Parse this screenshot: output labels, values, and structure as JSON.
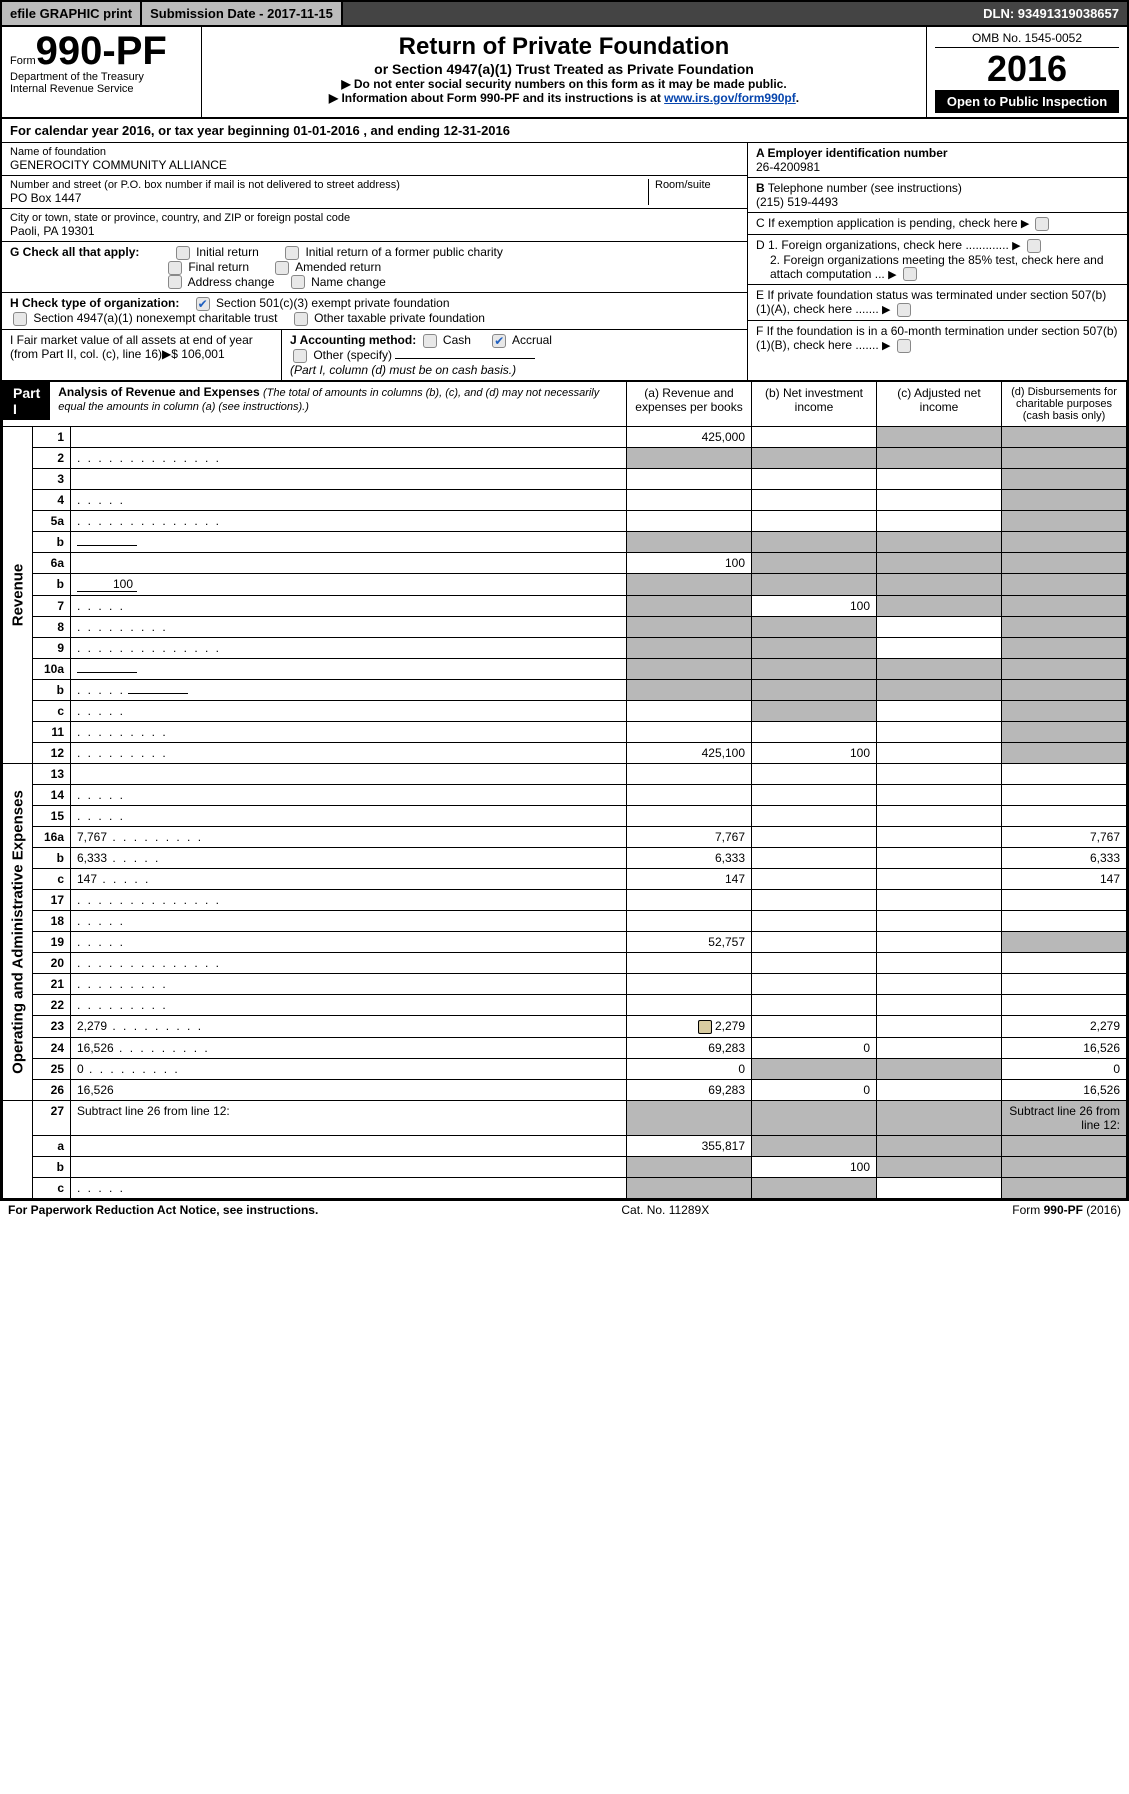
{
  "top_bar": {
    "efile": "efile GRAPHIC print",
    "submission": "Submission Date - 2017-11-15",
    "dln": "DLN: 93491319038657"
  },
  "header": {
    "form_word": "Form",
    "form_no": "990-PF",
    "dept1": "Department of the Treasury",
    "dept2": "Internal Revenue Service",
    "title": "Return of Private Foundation",
    "subtitle": "or Section 4947(a)(1) Trust Treated as Private Foundation",
    "note1": "▶ Do not enter social security numbers on this form as it may be made public.",
    "note2_pre": "▶ Information about Form 990-PF and its instructions is at ",
    "note2_link": "www.irs.gov/form990pf",
    "note2_post": ".",
    "omb": "OMB No. 1545-0052",
    "year": "2016",
    "open": "Open to Public Inspection"
  },
  "cal_year": "For calendar year 2016, or tax year beginning 01-01-2016                            , and ending 12-31-2016",
  "identity": {
    "name_label": "Name of foundation",
    "name": "GENEROCITY COMMUNITY ALLIANCE",
    "addr_label": "Number and street (or P.O. box number if mail is not delivered to street address)",
    "room_label": "Room/suite",
    "addr": "PO Box 1447",
    "city_label": "City or town, state or province, country, and ZIP or foreign postal code",
    "city": "Paoli, PA  19301",
    "ein_label": "A Employer identification number",
    "ein": "26-4200981",
    "tel_label": "B Telephone number (see instructions)",
    "tel": "(215) 519-4493",
    "c_label": "C If exemption application is pending, check here",
    "d1": "D 1. Foreign organizations, check here .............",
    "d2": "2. Foreign organizations meeting the 85% test, check here and attach computation ...",
    "e": "E  If private foundation status was terminated under section 507(b)(1)(A), check here .......",
    "f": "F  If the foundation is in a 60-month termination under section 507(b)(1)(B), check here .......",
    "g_label": "G Check all that apply:",
    "g_opts": [
      "Initial return",
      "Initial return of a former public charity",
      "Final return",
      "Amended return",
      "Address change",
      "Name change"
    ],
    "h_label": "H Check type of organization:",
    "h1": "Section 501(c)(3) exempt private foundation",
    "h2": "Section 4947(a)(1) nonexempt charitable trust",
    "h3": "Other taxable private foundation",
    "i_label": "I Fair market value of all assets at end of year (from Part II, col. (c), line 16)▶$  106,001",
    "j_label": "J Accounting method:",
    "j_cash": "Cash",
    "j_accrual": "Accrual",
    "j_other": "Other (specify)",
    "j_note": "(Part I, column (d) must be on cash basis.)"
  },
  "part1": {
    "badge": "Part I",
    "title": "Analysis of Revenue and Expenses",
    "title_note": "(The total of amounts in columns (b), (c), and (d) may not necessarily equal the amounts in column (a) (see instructions).)",
    "cols": {
      "a": "(a)    Revenue and expenses per books",
      "b": "(b)   Net investment income",
      "c": "(c)   Adjusted net income",
      "d": "(d)   Disbursements for charitable purposes (cash basis only)"
    },
    "section_rev": "Revenue",
    "section_exp": "Operating and Administrative Expenses"
  },
  "lines": [
    {
      "n": "1",
      "d": "",
      "a": "425,000",
      "b": "",
      "c": "",
      "c_sh": true,
      "d_sh": true
    },
    {
      "n": "2",
      "d": "",
      "dots": "long",
      "a": "",
      "b": "",
      "c": "",
      "all_sh": true
    },
    {
      "n": "3",
      "d": "",
      "a": "",
      "b": "",
      "c": "",
      "d_sh": true
    },
    {
      "n": "4",
      "d": "",
      "dots": "short",
      "a": "",
      "b": "",
      "c": "",
      "d_sh": true
    },
    {
      "n": "5a",
      "d": "",
      "dots": "long",
      "a": "",
      "b": "",
      "c": "",
      "d_sh": true
    },
    {
      "n": "b",
      "d": "",
      "inline": true,
      "a": "",
      "b": "",
      "c": "",
      "all_sh": true
    },
    {
      "n": "6a",
      "d": "",
      "a": "100",
      "b": "",
      "c": "",
      "b_sh": true,
      "c_sh": true,
      "d_sh": true
    },
    {
      "n": "b",
      "d": "",
      "inline_val": "100",
      "a": "",
      "b": "",
      "c": "",
      "all_sh": true
    },
    {
      "n": "7",
      "d": "",
      "dots": "short",
      "a": "",
      "b": "100",
      "c": "",
      "a_sh": true,
      "c_sh": true,
      "d_sh": true
    },
    {
      "n": "8",
      "d": "",
      "dots": "mid",
      "a": "",
      "b": "",
      "c": "",
      "a_sh": true,
      "b_sh": true,
      "d_sh": true
    },
    {
      "n": "9",
      "d": "",
      "dots": "long",
      "a": "",
      "b": "",
      "c": "",
      "a_sh": true,
      "b_sh": true,
      "d_sh": true
    },
    {
      "n": "10a",
      "d": "",
      "inline": true,
      "a": "",
      "b": "",
      "c": "",
      "all_sh": true
    },
    {
      "n": "b",
      "d": "",
      "dots": "short",
      "inline": true,
      "a": "",
      "b": "",
      "c": "",
      "all_sh": true
    },
    {
      "n": "c",
      "d": "",
      "dots": "short",
      "a": "",
      "b": "",
      "c": "",
      "b_sh": true,
      "d_sh": true
    },
    {
      "n": "11",
      "d": "",
      "dots": "mid",
      "a": "",
      "b": "",
      "c": "",
      "d_sh": true
    },
    {
      "n": "12",
      "d": "",
      "dots": "mid",
      "a": "425,100",
      "b": "100",
      "c": "",
      "d_sh": true
    }
  ],
  "exp_lines": [
    {
      "n": "13",
      "d": "",
      "a": "",
      "b": "",
      "c": ""
    },
    {
      "n": "14",
      "d": "",
      "dots": "short",
      "a": "",
      "b": "",
      "c": ""
    },
    {
      "n": "15",
      "d": "",
      "dots": "short",
      "a": "",
      "b": "",
      "c": ""
    },
    {
      "n": "16a",
      "d": "7,767",
      "dots": "mid",
      "a": "7,767",
      "b": "",
      "c": ""
    },
    {
      "n": "b",
      "d": "6,333",
      "dots": "short",
      "a": "6,333",
      "b": "",
      "c": ""
    },
    {
      "n": "c",
      "d": "147",
      "dots": "short",
      "a": "147",
      "b": "",
      "c": ""
    },
    {
      "n": "17",
      "d": "",
      "dots": "long",
      "a": "",
      "b": "",
      "c": ""
    },
    {
      "n": "18",
      "d": "",
      "dots": "short",
      "a": "",
      "b": "",
      "c": ""
    },
    {
      "n": "19",
      "d": "",
      "dots": "short",
      "a": "52,757",
      "b": "",
      "c": "",
      "d_sh": true
    },
    {
      "n": "20",
      "d": "",
      "dots": "long",
      "a": "",
      "b": "",
      "c": ""
    },
    {
      "n": "21",
      "d": "",
      "dots": "mid",
      "a": "",
      "b": "",
      "c": ""
    },
    {
      "n": "22",
      "d": "",
      "dots": "mid",
      "a": "",
      "b": "",
      "c": ""
    },
    {
      "n": "23",
      "d": "2,279",
      "dots": "mid",
      "attach": true,
      "a": "2,279",
      "b": "",
      "c": ""
    },
    {
      "n": "24",
      "d": "16,526",
      "dots": "mid",
      "a": "69,283",
      "b": "0",
      "c": ""
    },
    {
      "n": "25",
      "d": "0",
      "dots": "mid",
      "a": "0",
      "b": "",
      "c": "",
      "b_sh": true,
      "c_sh": true
    },
    {
      "n": "26",
      "d": "16,526",
      "a": "69,283",
      "b": "0",
      "c": ""
    }
  ],
  "net_lines": [
    {
      "n": "27",
      "d": "Subtract line 26 from line 12:",
      "all_sh": true
    },
    {
      "n": "a",
      "d": "",
      "a": "355,817",
      "b": "",
      "c": "",
      "b_sh": true,
      "c_sh": true,
      "d_sh": true
    },
    {
      "n": "b",
      "d": "",
      "a": "",
      "b": "100",
      "c": "",
      "a_sh": true,
      "c_sh": true,
      "d_sh": true
    },
    {
      "n": "c",
      "d": "",
      "dots": "short",
      "a": "",
      "b": "",
      "c": "",
      "a_sh": true,
      "b_sh": true,
      "d_sh": true
    }
  ],
  "footer": {
    "left": "For Paperwork Reduction Act Notice, see instructions.",
    "mid": "Cat. No. 11289X",
    "right": "Form 990-PF (2016)"
  }
}
